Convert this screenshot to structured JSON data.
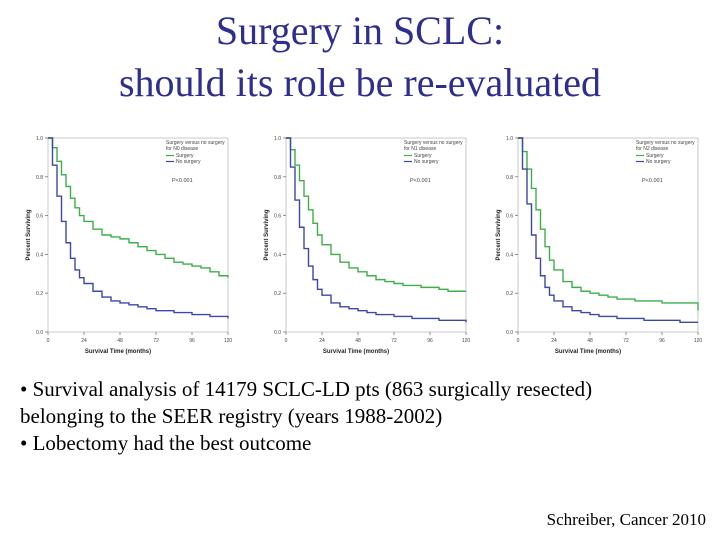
{
  "title": {
    "line1": "Surgery in SCLC:",
    "line2": "should its role be re-evaluated"
  },
  "chart_data": [
    {
      "type": "line",
      "title": "Surgery versus no surgery for N0 disease",
      "xlabel": "Survival Time (months)",
      "ylabel": "Percent Surviving",
      "xlim": [
        0,
        120
      ],
      "ylim": [
        0,
        1.0
      ],
      "x_ticks": [
        "0",
        "24",
        "48",
        "72",
        "96",
        "120"
      ],
      "y_ticks": [
        "0.0",
        "0.2",
        "0.4",
        "0.6",
        "0.8",
        "1.0"
      ],
      "annotation": "P<0.001",
      "legend": [
        "Surgery",
        "No surgery"
      ],
      "series": [
        {
          "name": "Surgery",
          "color": "#3fae4a",
          "x": [
            0,
            3,
            6,
            9,
            12,
            15,
            18,
            21,
            24,
            30,
            36,
            42,
            48,
            54,
            60,
            66,
            72,
            78,
            84,
            90,
            96,
            102,
            108,
            114,
            120
          ],
          "y": [
            1.0,
            0.95,
            0.88,
            0.81,
            0.75,
            0.69,
            0.64,
            0.6,
            0.57,
            0.53,
            0.5,
            0.49,
            0.48,
            0.46,
            0.44,
            0.42,
            0.4,
            0.38,
            0.36,
            0.35,
            0.34,
            0.33,
            0.31,
            0.29,
            0.28
          ]
        },
        {
          "name": "No surgery",
          "color": "#3b4aa0",
          "x": [
            0,
            3,
            6,
            9,
            12,
            15,
            18,
            21,
            24,
            30,
            36,
            42,
            48,
            54,
            60,
            66,
            72,
            78,
            84,
            90,
            96,
            102,
            108,
            114,
            120
          ],
          "y": [
            1.0,
            0.86,
            0.7,
            0.57,
            0.46,
            0.38,
            0.32,
            0.28,
            0.25,
            0.21,
            0.18,
            0.16,
            0.15,
            0.14,
            0.13,
            0.12,
            0.11,
            0.11,
            0.1,
            0.1,
            0.09,
            0.09,
            0.08,
            0.08,
            0.07
          ]
        }
      ]
    },
    {
      "type": "line",
      "title": "Surgery versus no surgery for N1 disease",
      "xlabel": "Survival Time (months)",
      "ylabel": "Percent Surviving",
      "xlim": [
        0,
        120
      ],
      "ylim": [
        0,
        1.0
      ],
      "x_ticks": [
        "0",
        "24",
        "48",
        "72",
        "96",
        "120"
      ],
      "y_ticks": [
        "0.0",
        "0.2",
        "0.4",
        "0.6",
        "0.8",
        "1.0"
      ],
      "annotation": "P<0.001",
      "legend": [
        "Surgery",
        "No surgery"
      ],
      "series": [
        {
          "name": "Surgery",
          "color": "#3fae4a",
          "x": [
            0,
            3,
            6,
            9,
            12,
            15,
            18,
            21,
            24,
            30,
            36,
            42,
            48,
            54,
            60,
            66,
            72,
            78,
            84,
            90,
            96,
            102,
            108,
            114,
            120
          ],
          "y": [
            1.0,
            0.94,
            0.86,
            0.78,
            0.7,
            0.63,
            0.56,
            0.5,
            0.45,
            0.4,
            0.36,
            0.33,
            0.31,
            0.29,
            0.27,
            0.26,
            0.25,
            0.24,
            0.24,
            0.23,
            0.23,
            0.22,
            0.21,
            0.21,
            0.21
          ]
        },
        {
          "name": "No surgery",
          "color": "#3b4aa0",
          "x": [
            0,
            3,
            6,
            9,
            12,
            15,
            18,
            21,
            24,
            30,
            36,
            42,
            48,
            54,
            60,
            66,
            72,
            78,
            84,
            90,
            96,
            102,
            108,
            114,
            120
          ],
          "y": [
            1.0,
            0.85,
            0.68,
            0.54,
            0.43,
            0.34,
            0.27,
            0.22,
            0.19,
            0.15,
            0.13,
            0.12,
            0.11,
            0.1,
            0.09,
            0.09,
            0.08,
            0.08,
            0.07,
            0.07,
            0.07,
            0.06,
            0.06,
            0.06,
            0.05
          ]
        }
      ]
    },
    {
      "type": "line",
      "title": "Surgery versus no surgery for N2 disease",
      "xlabel": "Survival Time (months)",
      "ylabel": "Percent Surviving",
      "xlim": [
        0,
        120
      ],
      "ylim": [
        0,
        1.0
      ],
      "x_ticks": [
        "0",
        "24",
        "48",
        "72",
        "96",
        "120"
      ],
      "y_ticks": [
        "0.0",
        "0.2",
        "0.4",
        "0.6",
        "0.8",
        "1.0"
      ],
      "annotation": "P<0.001",
      "legend": [
        "Surgery",
        "No surgery"
      ],
      "series": [
        {
          "name": "Surgery",
          "color": "#3fae4a",
          "x": [
            0,
            3,
            6,
            9,
            12,
            15,
            18,
            21,
            24,
            30,
            36,
            42,
            48,
            54,
            60,
            66,
            72,
            78,
            84,
            90,
            96,
            102,
            108,
            114,
            120
          ],
          "y": [
            1.0,
            0.93,
            0.84,
            0.74,
            0.63,
            0.53,
            0.44,
            0.37,
            0.32,
            0.26,
            0.23,
            0.21,
            0.2,
            0.19,
            0.18,
            0.17,
            0.17,
            0.16,
            0.16,
            0.16,
            0.15,
            0.15,
            0.15,
            0.15,
            0.11
          ]
        },
        {
          "name": "No surgery",
          "color": "#3b4aa0",
          "x": [
            0,
            3,
            6,
            9,
            12,
            15,
            18,
            21,
            24,
            30,
            36,
            42,
            48,
            54,
            60,
            66,
            72,
            78,
            84,
            90,
            96,
            102,
            108,
            114,
            120
          ],
          "y": [
            1.0,
            0.84,
            0.66,
            0.5,
            0.38,
            0.29,
            0.23,
            0.19,
            0.16,
            0.13,
            0.11,
            0.1,
            0.09,
            0.08,
            0.08,
            0.07,
            0.07,
            0.07,
            0.06,
            0.06,
            0.06,
            0.06,
            0.05,
            0.05,
            0.05
          ]
        }
      ]
    }
  ],
  "bullets": [
    "• Survival analysis of 14179 SCLC-LD pts (863 surgically resected)",
    "belonging to the SEER registry (years 1988-2002)",
    "• Lobectomy had the best outcome"
  ],
  "citation": "Schreiber, Cancer 2010"
}
